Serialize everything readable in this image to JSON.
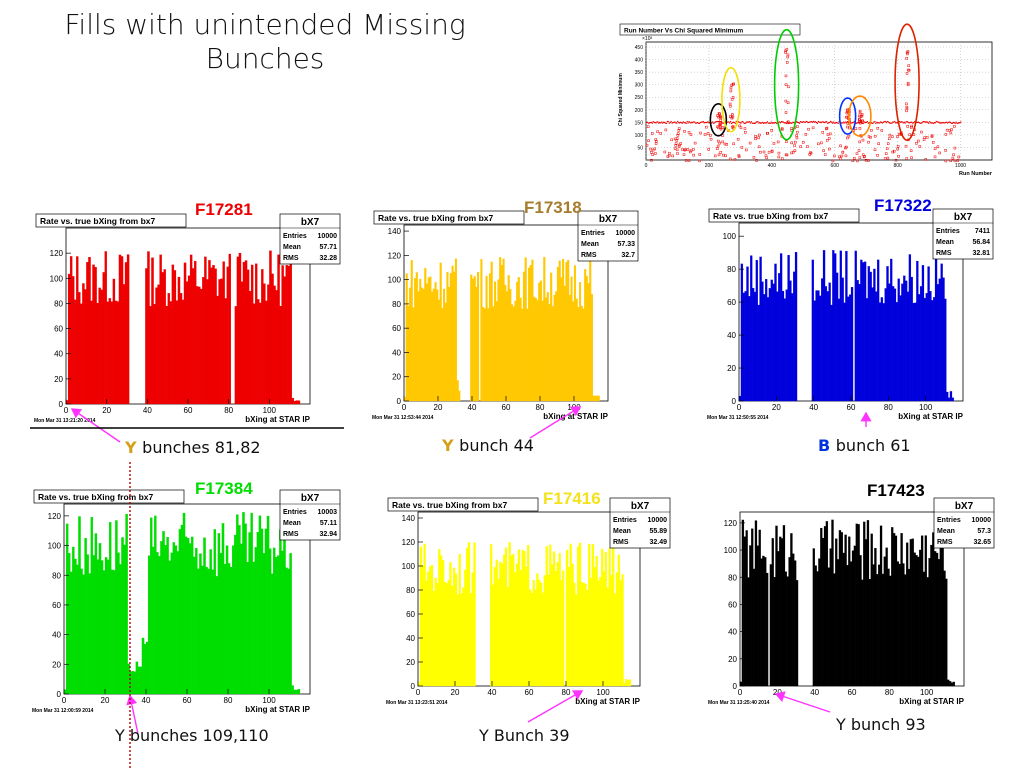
{
  "title": {
    "line1": "Fills with unintended Missing",
    "line2": "Bunches"
  },
  "colors": {
    "F17281": "#ee0000",
    "F17318": "#ffc800",
    "F17322": "#0000dd",
    "F17384": "#00dd00",
    "F17416": "#ffff00",
    "F17423": "#000000",
    "label_F17318": "#a67c2d",
    "label_F17416": "#f4e21a",
    "arrow": "#ff33ff",
    "dotted": "#b00000"
  },
  "overview": {
    "title": "Run Number Vs Chi Squared Minimum",
    "ylabel": "Chi Squared Minimum",
    "xlabel": "Run Number",
    "exponent": "×10³",
    "yticks": [
      "50",
      "100",
      "150",
      "200",
      "250",
      "300",
      "350",
      "400",
      "450"
    ],
    "xticks": [
      "0",
      "200",
      "400",
      "600",
      "800",
      "1000"
    ]
  },
  "chart_data": [
    {
      "type": "bar",
      "fill": "F17281",
      "title": "Rate vs. true bXing from bx7",
      "stats": {
        "name": "bX7",
        "entries": "10000",
        "mean": "57.71",
        "rms": "32.28"
      },
      "xlabel": "bXing at STAR IP",
      "date": "Mon Mar 31 13:21:20 2014",
      "ylim": [
        0,
        140
      ],
      "yticks": [
        0,
        20,
        40,
        60,
        80,
        100,
        120
      ],
      "xticks": [
        0,
        20,
        40,
        60,
        80,
        100
      ],
      "gaps": [
        [
          31,
          38
        ]
      ],
      "missing": [
        81,
        82
      ],
      "abort": [
        111,
        119
      ],
      "level": 100,
      "caption_color": "Y",
      "caption_text": "bunches 81,82"
    },
    {
      "type": "bar",
      "fill": "F17318",
      "title": "Rate vs. true bXing from bx7",
      "stats": {
        "name": "bX7",
        "entries": "10000",
        "mean": "57.33",
        "rms": "32.7"
      },
      "xlabel": "bXing at STAR IP",
      "date": "Mon Mar 31 12:53:44 2014",
      "ylim": [
        0,
        145
      ],
      "yticks": [
        0,
        20,
        40,
        60,
        80,
        100,
        120,
        140
      ],
      "xticks": [
        0,
        20,
        40,
        60,
        80,
        100
      ],
      "gaps": [
        [
          31,
          38
        ]
      ],
      "missing": [
        44
      ],
      "abort": [
        111,
        119
      ],
      "level": 98,
      "caption_color": "Y",
      "caption_text": "bunch 44"
    },
    {
      "type": "bar",
      "fill": "F17322",
      "title": "Rate vs. true bXing from bx7",
      "stats": {
        "name": "bX7",
        "entries": "7411",
        "mean": "56.84",
        "rms": "32.81"
      },
      "xlabel": "bXing at STAR IP",
      "date": "Mon Mar 31 12:50:55 2014",
      "ylim": [
        0,
        108
      ],
      "yticks": [
        0,
        20,
        40,
        60,
        80,
        100
      ],
      "xticks": [
        0,
        20,
        40,
        60,
        80,
        100
      ],
      "gaps": [
        [
          31,
          38
        ]
      ],
      "missing": [
        61
      ],
      "abort": [
        111,
        119
      ],
      "level": 75,
      "caption_color": "B",
      "caption_text": "bunch 61"
    },
    {
      "type": "bar",
      "fill": "F17384",
      "title": "Rate vs. true bXing from bx7",
      "stats": {
        "name": "bX7",
        "entries": "10003",
        "mean": "57.11",
        "rms": "32.94"
      },
      "xlabel": "bXing at STAR IP",
      "date": "Mon Mar 31 12:00:59 2014",
      "ylim": [
        0,
        128
      ],
      "yticks": [
        0,
        20,
        40,
        60,
        80,
        100,
        120
      ],
      "xticks": [
        0,
        20,
        40,
        60,
        80,
        100
      ],
      "gaps": [
        [
          31,
          38
        ]
      ],
      "missing": [],
      "abort": [
        111,
        119
      ],
      "level": 100,
      "caption_color": "",
      "caption_text": "Y bunches 109,110"
    },
    {
      "type": "bar",
      "fill": "F17416",
      "title": "Rate vs. true bXing from bx7",
      "stats": {
        "name": "bX7",
        "entries": "10000",
        "mean": "55.89",
        "rms": "32.49"
      },
      "xlabel": "bXing at STAR IP",
      "date": "Mon Mar 31 13:23:51 2014",
      "ylim": [
        0,
        145
      ],
      "yticks": [
        0,
        20,
        40,
        60,
        80,
        100,
        120,
        140
      ],
      "xticks": [
        0,
        20,
        40,
        60,
        80,
        100
      ],
      "gaps": [
        [
          31,
          38
        ]
      ],
      "missing": [
        79
      ],
      "abort": [
        111,
        119
      ],
      "level": 98,
      "caption_color": "",
      "caption_text": "Y Bunch 39"
    },
    {
      "type": "bar",
      "fill": "F17423",
      "title": "",
      "stats": {
        "name": "bX7",
        "entries": "10000",
        "mean": "57.3",
        "rms": "32.65"
      },
      "xlabel": "bXing at STAR IP",
      "date": "Mon Mar 31 13:25:40 2014",
      "ylim": [
        0,
        128
      ],
      "yticks": [
        0,
        20,
        40,
        60,
        80,
        100,
        120
      ],
      "xticks": [
        0,
        20,
        40,
        60,
        80,
        100
      ],
      "gaps": [
        [
          31,
          38
        ]
      ],
      "missing": [
        15
      ],
      "abort": [
        111,
        119
      ],
      "level": 100,
      "caption_color": "",
      "caption_text": "Y bunch 93"
    }
  ]
}
